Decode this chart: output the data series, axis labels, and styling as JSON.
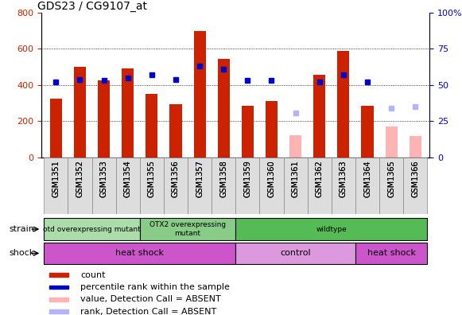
{
  "title": "GDS23 / CG9107_at",
  "samples": [
    "GSM1351",
    "GSM1352",
    "GSM1353",
    "GSM1354",
    "GSM1355",
    "GSM1356",
    "GSM1357",
    "GSM1358",
    "GSM1359",
    "GSM1360",
    "GSM1361",
    "GSM1362",
    "GSM1363",
    "GSM1364",
    "GSM1365",
    "GSM1366"
  ],
  "count_values": [
    325,
    500,
    425,
    490,
    350,
    295,
    700,
    545,
    285,
    310,
    null,
    455,
    590,
    285,
    null,
    null
  ],
  "absent_values": [
    null,
    null,
    null,
    null,
    null,
    null,
    null,
    null,
    null,
    null,
    125,
    null,
    null,
    null,
    170,
    120
  ],
  "percentile_values": [
    52,
    54,
    53,
    55,
    57,
    54,
    63,
    61,
    53,
    53,
    null,
    52,
    57,
    52,
    null,
    null
  ],
  "absent_rank_values": [
    null,
    null,
    null,
    null,
    null,
    null,
    null,
    null,
    null,
    null,
    31,
    null,
    null,
    null,
    34,
    35
  ],
  "count_color": "#cc2200",
  "absent_color": "#ffb3b3",
  "percentile_color": "#0000cc",
  "absent_rank_color": "#b3b3ff",
  "ylim_left": [
    0,
    800
  ],
  "ylim_right": [
    0,
    100
  ],
  "yticks_left": [
    0,
    200,
    400,
    600,
    800
  ],
  "yticks_right": [
    0,
    25,
    50,
    75,
    100
  ],
  "grid_lines": [
    200,
    400,
    600
  ],
  "strain_groups": [
    {
      "label": "otd overexpressing mutant",
      "start": 0,
      "end": 4,
      "color": "#aaddaa"
    },
    {
      "label": "OTX2 overexpressing\nmutant",
      "start": 4,
      "end": 8,
      "color": "#88cc88"
    },
    {
      "label": "wildtype",
      "start": 8,
      "end": 16,
      "color": "#55bb55"
    }
  ],
  "shock_groups": [
    {
      "label": "heat shock",
      "start": 0,
      "end": 8,
      "color": "#cc55cc"
    },
    {
      "label": "control",
      "start": 8,
      "end": 13,
      "color": "#dd99dd"
    },
    {
      "label": "heat shock",
      "start": 13,
      "end": 16,
      "color": "#cc55cc"
    }
  ],
  "bar_width": 0.5,
  "bg_color": "#ffffff",
  "tick_label_color_left": "#cc2200",
  "tick_label_color_right": "#0000cc"
}
